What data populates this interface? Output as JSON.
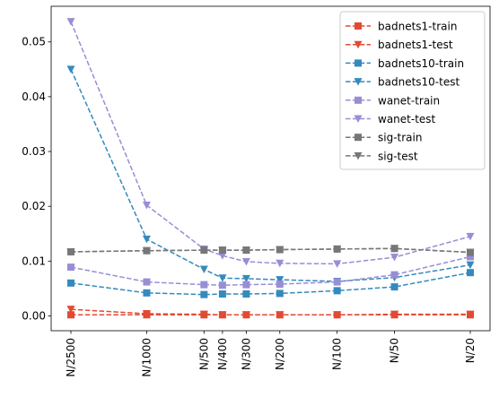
{
  "chart_data": {
    "type": "line",
    "title": "",
    "xlabel": "",
    "ylabel": "",
    "x": [
      "N/2500",
      "N/1000",
      "N/500",
      "N/400",
      "N/300",
      "N/200",
      "N/100",
      "N/50",
      "N/20"
    ],
    "x_numeric": [
      2500,
      1000,
      500,
      400,
      300,
      200,
      100,
      50,
      20
    ],
    "x_scale": "log, reversed",
    "ylim": [
      -0.0027,
      0.0565
    ],
    "yticks": [
      0.0,
      0.01,
      0.02,
      0.03,
      0.04,
      0.05
    ],
    "ytick_labels": [
      "0.00",
      "0.01",
      "0.02",
      "0.03",
      "0.04",
      "0.05"
    ],
    "grid": false,
    "legend_position": "top-right",
    "series": [
      {
        "name": "badnets1-train",
        "color": "#e24a33",
        "marker": "square",
        "linestyle": "dashed",
        "values": [
          0.0002,
          0.0002,
          0.0002,
          0.0002,
          0.0002,
          0.0002,
          0.0002,
          0.0002,
          0.0002
        ]
      },
      {
        "name": "badnets1-test",
        "color": "#e24a33",
        "marker": "triangle-down",
        "linestyle": "dashed",
        "values": [
          0.0012,
          0.0004,
          0.0003,
          0.0002,
          0.0002,
          0.0002,
          0.0002,
          0.0003,
          0.0003
        ]
      },
      {
        "name": "badnets10-train",
        "color": "#348abd",
        "marker": "square",
        "linestyle": "dashed",
        "values": [
          0.006,
          0.0042,
          0.0039,
          0.004,
          0.004,
          0.0041,
          0.0046,
          0.0053,
          0.0079
        ]
      },
      {
        "name": "badnets10-test",
        "color": "#348abd",
        "marker": "triangle-down",
        "linestyle": "dashed",
        "values": [
          0.045,
          0.014,
          0.0085,
          0.0069,
          0.0068,
          0.0066,
          0.0063,
          0.007,
          0.0093
        ]
      },
      {
        "name": "wanet-train",
        "color": "#988ed5",
        "marker": "square",
        "linestyle": "dashed",
        "values": [
          0.0089,
          0.0062,
          0.0057,
          0.0056,
          0.0057,
          0.0058,
          0.0062,
          0.0075,
          0.0108
        ]
      },
      {
        "name": "wanet-test",
        "color": "#988ed5",
        "marker": "triangle-down",
        "linestyle": "dashed",
        "values": [
          0.0537,
          0.0202,
          0.0122,
          0.011,
          0.0099,
          0.0096,
          0.0095,
          0.0107,
          0.0145
        ]
      },
      {
        "name": "sig-train",
        "color": "#777777",
        "marker": "square",
        "linestyle": "dashed",
        "values": [
          0.0117,
          0.0119,
          0.012,
          0.012,
          0.012,
          0.0121,
          0.0122,
          0.0123,
          0.0116
        ]
      },
      {
        "name": "sig-test",
        "color": "#777777",
        "marker": "triangle-down",
        "linestyle": "dashed",
        "values": [
          0.0117,
          0.0119,
          0.012,
          0.012,
          0.012,
          0.0121,
          0.0122,
          0.0123,
          0.0116
        ]
      }
    ]
  }
}
